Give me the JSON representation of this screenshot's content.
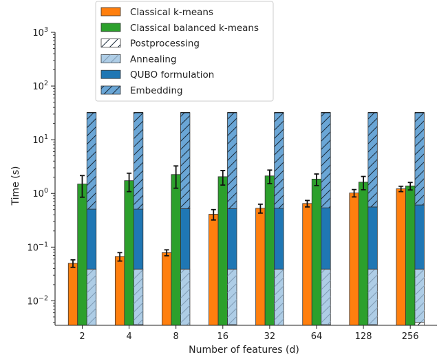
{
  "chart_data": {
    "type": "bar",
    "log_scale_y": true,
    "xlabel": "Number of features (d)",
    "ylabel": "Time (s)",
    "ylim": [
      0.0035,
      1000
    ],
    "y_ticks": [
      {
        "value": 0.01,
        "base": "10",
        "exp": "−2"
      },
      {
        "value": 0.1,
        "base": "10",
        "exp": "−1"
      },
      {
        "value": 1,
        "base": "10",
        "exp": "0"
      },
      {
        "value": 10,
        "base": "10",
        "exp": "1"
      },
      {
        "value": 100,
        "base": "10",
        "exp": "2"
      },
      {
        "value": 1000,
        "base": "10",
        "exp": "3"
      }
    ],
    "categories": [
      "2",
      "4",
      "8",
      "16",
      "32",
      "64",
      "128",
      "256"
    ],
    "grid": false,
    "legend_position": "top-center",
    "colors": {
      "kmeans": "#ff7f0e",
      "balanced": "#2ca02c",
      "postprocessing": "#ffffff",
      "annealing": "#aecde6",
      "qubo": "#1f77b4",
      "embedding": "#6aa6d6"
    },
    "series": [
      {
        "name": "Classical k-means",
        "values": [
          0.05,
          0.067,
          0.079,
          0.41,
          0.53,
          0.65,
          1.02,
          1.22
        ],
        "errors": [
          0.008,
          0.012,
          0.01,
          0.09,
          0.1,
          0.09,
          0.16,
          0.14
        ]
      },
      {
        "name": "Classical balanced k-means",
        "values": [
          1.5,
          1.73,
          2.25,
          2.05,
          2.12,
          1.85,
          1.62,
          1.38
        ],
        "errors": [
          0.65,
          0.65,
          1.0,
          0.62,
          0.6,
          0.45,
          0.45,
          0.22
        ]
      },
      {
        "name": "Postprocessing",
        "values": [
          0.0035,
          0.0036,
          0.0035,
          0.0036,
          0.0035,
          0.0036,
          0.0036,
          0.004
        ]
      },
      {
        "name": "Annealing",
        "values": [
          0.039,
          0.039,
          0.039,
          0.039,
          0.039,
          0.039,
          0.039,
          0.039
        ]
      },
      {
        "name": "QUBO formulation",
        "values": [
          0.51,
          0.51,
          0.52,
          0.52,
          0.53,
          0.54,
          0.56,
          0.61
        ]
      },
      {
        "name": "Embedding",
        "values": [
          32,
          32,
          32,
          32,
          32,
          32,
          32,
          32
        ]
      }
    ]
  }
}
